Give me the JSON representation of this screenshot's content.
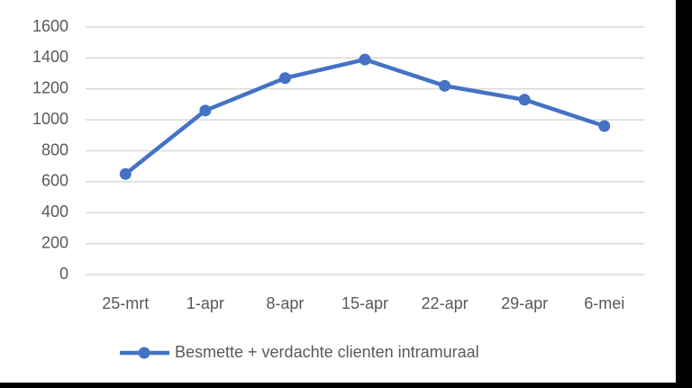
{
  "chart_data": {
    "type": "line",
    "categories": [
      "25-mrt",
      "1-apr",
      "8-apr",
      "15-apr",
      "22-apr",
      "29-apr",
      "6-mei"
    ],
    "series": [
      {
        "name": "Besmette + verdachte clienten intramuraal",
        "color": "#4472c4",
        "values": [
          650,
          1060,
          1270,
          1390,
          1220,
          1130,
          960
        ]
      }
    ],
    "ylim": [
      0,
      1600
    ],
    "yticks": [
      0,
      200,
      400,
      600,
      800,
      1000,
      1200,
      1400,
      1600
    ],
    "grid": true,
    "legend": "bottom"
  }
}
